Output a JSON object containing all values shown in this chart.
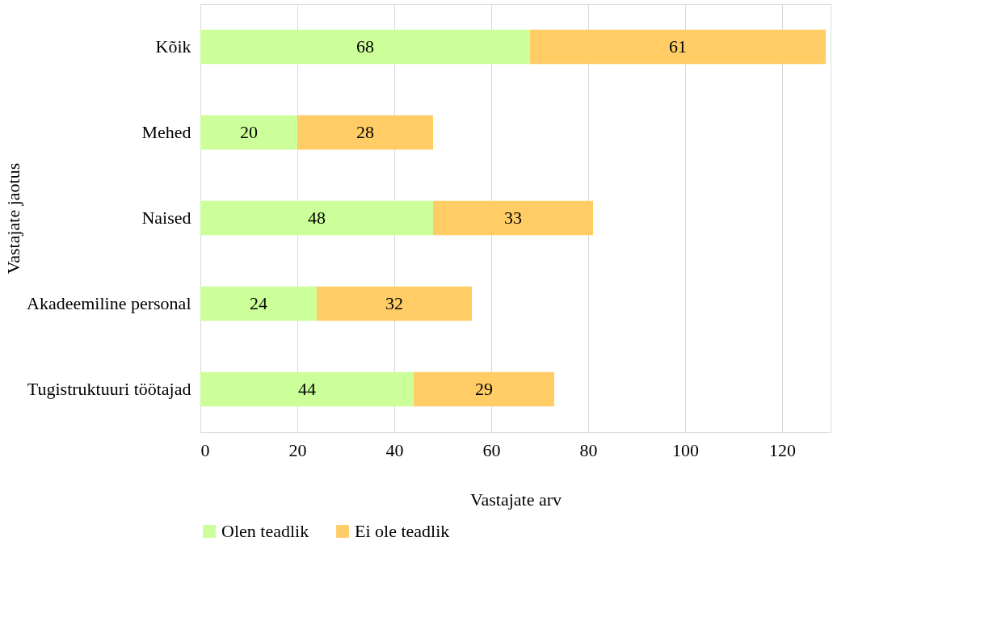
{
  "chart_data": {
    "type": "bar",
    "orientation": "horizontal",
    "stacked": true,
    "xlabel": "Vastajate arv",
    "ylabel": "Vastajate jaotus",
    "categories": [
      "Kõik",
      "Mehed",
      "Naised",
      "Akadeemiline personal",
      "Tugistruktuuri töötajad"
    ],
    "series": [
      {
        "name": "Olen teadlik",
        "color": "#ccff99",
        "values": [
          68,
          20,
          48,
          24,
          44
        ]
      },
      {
        "name": "Ei ole teadlik",
        "color": "#ffcc66",
        "values": [
          61,
          28,
          33,
          32,
          29
        ]
      }
    ],
    "xlim": [
      0,
      130
    ],
    "xticks": [
      0,
      20,
      40,
      60,
      80,
      100,
      120
    ],
    "grid": "x",
    "legend": "bottom",
    "data_labels": true
  }
}
